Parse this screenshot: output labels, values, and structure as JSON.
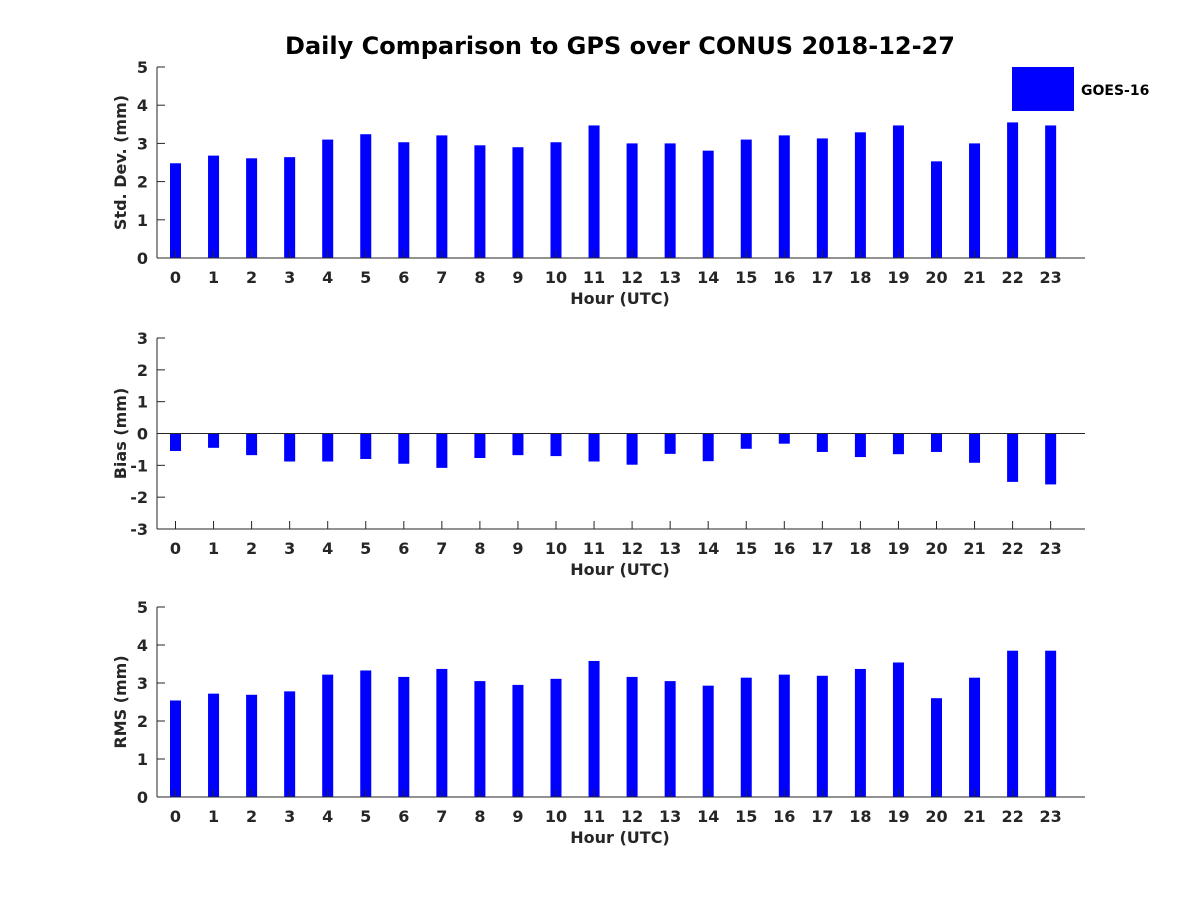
{
  "chart_data": {
    "title": "Daily Comparison to GPS over CONUS 2018-12-27",
    "legend": {
      "label": "GOES-16",
      "placement": "top-right",
      "color": "#0000ff"
    },
    "bar_color": "#0000ff",
    "panels": [
      {
        "type": "bar",
        "ylabel": "Std. Dev. (mm)",
        "xlabel": "Hour (UTC)",
        "ylim": [
          0,
          5
        ],
        "yticks": [
          0,
          1,
          2,
          3,
          4,
          5
        ],
        "categories": [
          "0",
          "1",
          "2",
          "3",
          "4",
          "5",
          "6",
          "7",
          "8",
          "9",
          "10",
          "11",
          "12",
          "13",
          "14",
          "15",
          "16",
          "17",
          "18",
          "19",
          "20",
          "21",
          "22",
          "23"
        ],
        "values": [
          2.48,
          2.68,
          2.61,
          2.64,
          3.1,
          3.24,
          3.03,
          3.21,
          2.95,
          2.9,
          3.03,
          3.47,
          3.0,
          3.0,
          2.81,
          3.1,
          3.21,
          3.13,
          3.29,
          3.47,
          2.53,
          3.0,
          3.55,
          3.47
        ]
      },
      {
        "type": "bar",
        "ylabel": "Bias (mm)",
        "xlabel": "Hour (UTC)",
        "ylim": [
          -3,
          3
        ],
        "yticks": [
          -3,
          -2,
          -1,
          0,
          1,
          2,
          3
        ],
        "categories": [
          "0",
          "1",
          "2",
          "3",
          "4",
          "5",
          "6",
          "7",
          "8",
          "9",
          "10",
          "11",
          "12",
          "13",
          "14",
          "15",
          "16",
          "17",
          "18",
          "19",
          "20",
          "21",
          "22",
          "23"
        ],
        "values": [
          -0.55,
          -0.45,
          -0.68,
          -0.88,
          -0.88,
          -0.8,
          -0.95,
          -1.08,
          -0.77,
          -0.68,
          -0.71,
          -0.88,
          -0.98,
          -0.64,
          -0.87,
          -0.48,
          -0.32,
          -0.58,
          -0.74,
          -0.65,
          -0.58,
          -0.92,
          -1.52,
          -1.6
        ]
      },
      {
        "type": "bar",
        "ylabel": "RMS (mm)",
        "xlabel": "Hour (UTC)",
        "ylim": [
          0,
          5
        ],
        "yticks": [
          0,
          1,
          2,
          3,
          4,
          5
        ],
        "categories": [
          "0",
          "1",
          "2",
          "3",
          "4",
          "5",
          "6",
          "7",
          "8",
          "9",
          "10",
          "11",
          "12",
          "13",
          "14",
          "15",
          "16",
          "17",
          "18",
          "19",
          "20",
          "21",
          "22",
          "23"
        ],
        "values": [
          2.54,
          2.72,
          2.69,
          2.78,
          3.22,
          3.33,
          3.16,
          3.37,
          3.05,
          2.95,
          3.11,
          3.58,
          3.16,
          3.05,
          2.93,
          3.14,
          3.22,
          3.19,
          3.37,
          3.54,
          2.6,
          3.14,
          3.85,
          3.85
        ]
      }
    ]
  }
}
